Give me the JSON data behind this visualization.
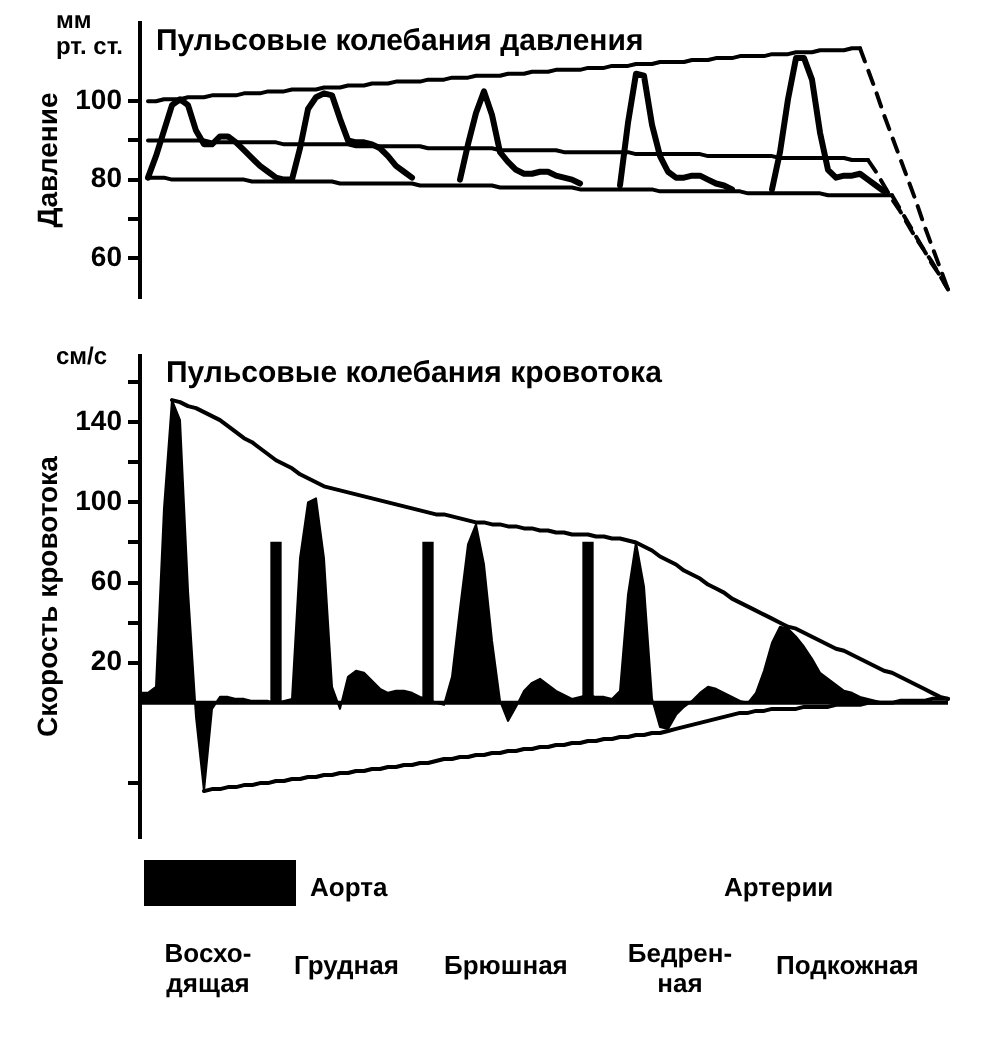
{
  "chart_data": [
    {
      "type": "line",
      "title": "Пульсовые колебания давления",
      "ylabel": "Давление",
      "annotations": [
        "мм\nрт. ст."
      ],
      "categories": [
        null,
        null,
        null,
        null,
        null,
        null,
        null,
        null,
        null,
        null,
        null,
        null,
        null,
        null,
        null,
        null,
        null,
        null,
        null,
        null,
        null,
        null,
        null,
        null,
        null,
        null,
        null,
        null,
        null,
        null,
        null,
        null,
        null,
        null,
        null,
        null,
        null,
        null,
        null,
        null,
        null,
        null,
        null,
        null,
        null,
        null,
        null,
        null,
        null,
        null,
        null,
        null,
        null,
        null,
        null,
        null,
        null,
        null,
        null,
        null,
        null,
        null,
        null,
        null,
        null,
        null,
        null,
        null,
        null,
        null,
        null,
        null,
        null,
        null,
        null,
        null,
        null,
        null,
        null,
        null,
        null,
        null,
        null,
        null,
        null,
        null,
        null,
        null,
        null,
        null,
        null,
        null,
        null,
        null,
        null,
        null,
        null,
        null,
        null,
        null,
        null,
        null
      ],
      "ylim": [
        50,
        120
      ],
      "yticks": [
        60,
        {
          "value": 70,
          "label": null
        },
        80,
        {
          "value": 90,
          "label": null
        },
        100
      ],
      "tick_labels": "y",
      "marker": "none",
      "line_style": "solid",
      "series": [
        {
          "color": "#000000",
          "values": [
            null,
            80.5,
            86,
            92.5,
            99,
            100.5,
            99,
            92.5,
            89,
            89,
            91,
            91,
            89.5,
            87.5,
            85.5,
            83.5,
            82,
            80.5,
            80,
            80,
            88,
            98,
            101,
            102,
            101.5,
            95.5,
            90,
            89.5,
            89.5,
            89,
            88,
            86,
            83.5,
            82,
            80.5,
            null,
            null,
            null,
            null,
            null,
            80,
            89,
            97,
            102.5,
            96.5,
            87,
            84.5,
            82.5,
            81.5,
            81.5,
            82,
            82,
            81,
            80.5,
            80,
            79,
            null,
            null,
            null,
            null,
            78.5,
            94.5,
            107,
            106.5,
            94,
            86,
            82,
            80.5,
            80.5,
            81,
            81,
            80,
            79,
            78.5,
            77.5,
            null,
            null,
            null,
            null,
            77.5,
            87,
            100.5,
            111,
            111,
            105.5,
            92,
            82.5,
            80.5,
            81,
            81,
            81.5,
            80,
            78.5,
            77,
            null,
            null,
            null,
            null,
            null,
            null,
            null,
            null
          ]
        },
        {
          "color": "#000000",
          "values": [
            null,
            100,
            100,
            100.5,
            100.5,
            100.5,
            101,
            101,
            101,
            101.5,
            101.5,
            101.5,
            101.5,
            102,
            102,
            102,
            102.5,
            102.5,
            102.5,
            103,
            103,
            103,
            103,
            103.5,
            103.5,
            103.5,
            104,
            104,
            104,
            104.5,
            104.5,
            104.5,
            105,
            105,
            105,
            105,
            105.5,
            105.5,
            105.5,
            106,
            106,
            106,
            106.5,
            106.5,
            106.5,
            106.5,
            107,
            107,
            107,
            107.5,
            107.5,
            107.5,
            108,
            108,
            108,
            108,
            108.5,
            108.5,
            108.5,
            109,
            109,
            109,
            109.5,
            109.5,
            109.5,
            110,
            110,
            110,
            110,
            110.5,
            110.5,
            110.5,
            111,
            111,
            111,
            111.5,
            111.5,
            111.5,
            111.5,
            112,
            112,
            112,
            112.5,
            112.5,
            112.5,
            113,
            113,
            113,
            113,
            113.5,
            113.5,
            null,
            null,
            null,
            null,
            null,
            null,
            null,
            null,
            null,
            null,
            null
          ]
        },
        {
          "color": "#000000",
          "line_style": "dashed",
          "values": [
            null,
            null,
            null,
            null,
            null,
            null,
            null,
            null,
            null,
            null,
            null,
            null,
            null,
            null,
            null,
            null,
            null,
            null,
            null,
            null,
            null,
            null,
            null,
            null,
            null,
            null,
            null,
            null,
            null,
            null,
            null,
            null,
            null,
            null,
            null,
            null,
            null,
            null,
            null,
            null,
            null,
            null,
            null,
            null,
            null,
            null,
            null,
            null,
            null,
            null,
            null,
            null,
            null,
            null,
            null,
            null,
            null,
            null,
            null,
            null,
            null,
            null,
            null,
            null,
            null,
            null,
            null,
            null,
            null,
            null,
            null,
            null,
            null,
            null,
            null,
            null,
            null,
            null,
            null,
            null,
            null,
            null,
            null,
            null,
            null,
            null,
            null,
            null,
            null,
            null,
            113.5,
            108,
            102.5,
            96.5,
            91,
            85.5,
            80,
            74.5,
            68.5,
            63,
            57.5,
            52
          ]
        },
        {
          "color": "#000000",
          "values": [
            null,
            90,
            90,
            90,
            90,
            90,
            90,
            90,
            90,
            89.5,
            89.5,
            89.5,
            89.5,
            89.5,
            89.5,
            89.5,
            89.5,
            89.5,
            89,
            89,
            89,
            89,
            89,
            89,
            89,
            89,
            89,
            88.5,
            88.5,
            88.5,
            88.5,
            88.5,
            88.5,
            88.5,
            88.5,
            88.5,
            88,
            88,
            88,
            88,
            88,
            88,
            88,
            88,
            88,
            87.5,
            87.5,
            87.5,
            87.5,
            87.5,
            87.5,
            87.5,
            87.5,
            87,
            87,
            87,
            87,
            87,
            87,
            87,
            87,
            87,
            86.5,
            86.5,
            86.5,
            86.5,
            86.5,
            86.5,
            86.5,
            86.5,
            86.5,
            86,
            86,
            86,
            86,
            86,
            86,
            86,
            86,
            86,
            85.5,
            85.5,
            85.5,
            85.5,
            85.5,
            85.5,
            85.5,
            85.5,
            85.5,
            85,
            85,
            85,
            null,
            null,
            null,
            null,
            null,
            null,
            null,
            null,
            null,
            null
          ]
        },
        {
          "color": "#000000",
          "line_style": "dashed",
          "values": [
            null,
            null,
            null,
            null,
            null,
            null,
            null,
            null,
            null,
            null,
            null,
            null,
            null,
            null,
            null,
            null,
            null,
            null,
            null,
            null,
            null,
            null,
            null,
            null,
            null,
            null,
            null,
            null,
            null,
            null,
            null,
            null,
            null,
            null,
            null,
            null,
            null,
            null,
            null,
            null,
            null,
            null,
            null,
            null,
            null,
            null,
            null,
            null,
            null,
            null,
            null,
            null,
            null,
            null,
            null,
            null,
            null,
            null,
            null,
            null,
            null,
            null,
            null,
            null,
            null,
            null,
            null,
            null,
            null,
            null,
            null,
            null,
            null,
            null,
            null,
            null,
            null,
            null,
            null,
            null,
            null,
            null,
            null,
            null,
            null,
            null,
            null,
            null,
            null,
            null,
            null,
            85,
            82,
            78.5,
            75,
            72,
            68.5,
            65,
            62,
            58.5,
            55.5,
            52
          ]
        },
        {
          "color": "#000000",
          "values": [
            null,
            80.5,
            80.5,
            80.5,
            80,
            80,
            80,
            80,
            80,
            80,
            80,
            80,
            80,
            80,
            79.5,
            79.5,
            79.5,
            79.5,
            79.5,
            79.5,
            79.5,
            79.5,
            79.5,
            79.5,
            79.5,
            79,
            79,
            79,
            79,
            79,
            79,
            79,
            79,
            79,
            79,
            78.5,
            78.5,
            78.5,
            78.5,
            78.5,
            78.5,
            78.5,
            78.5,
            78.5,
            78.5,
            78,
            78,
            78,
            78,
            78,
            78,
            78,
            78,
            78,
            78,
            77.5,
            77.5,
            77.5,
            77.5,
            77.5,
            77.5,
            77.5,
            77.5,
            77.5,
            77.5,
            77,
            77,
            77,
            77,
            77,
            77,
            77,
            77,
            77,
            77,
            77,
            76.5,
            76.5,
            76.5,
            76.5,
            76.5,
            76.5,
            76.5,
            76.5,
            76.5,
            76.5,
            76,
            76,
            76,
            76,
            76,
            76,
            76,
            76,
            76,
            null,
            null,
            null,
            null,
            null,
            null,
            null
          ]
        },
        {
          "color": "#000000",
          "line_style": "dashed",
          "values": [
            null,
            null,
            null,
            null,
            null,
            null,
            null,
            null,
            null,
            null,
            null,
            null,
            null,
            null,
            null,
            null,
            null,
            null,
            null,
            null,
            null,
            null,
            null,
            null,
            null,
            null,
            null,
            null,
            null,
            null,
            null,
            null,
            null,
            null,
            null,
            null,
            null,
            null,
            null,
            null,
            null,
            null,
            null,
            null,
            null,
            null,
            null,
            null,
            null,
            null,
            null,
            null,
            null,
            null,
            null,
            null,
            null,
            null,
            null,
            null,
            null,
            null,
            null,
            null,
            null,
            null,
            null,
            null,
            null,
            null,
            null,
            null,
            null,
            null,
            null,
            null,
            null,
            null,
            null,
            null,
            null,
            null,
            null,
            null,
            null,
            null,
            null,
            null,
            null,
            null,
            null,
            null,
            null,
            null,
            76,
            72.5,
            69,
            65.5,
            62,
            59,
            55.5,
            52
          ]
        }
      ]
    },
    {
      "type": "area",
      "title": "Пульсовые колебания кровотока",
      "ylabel": "Скорость кровотока",
      "annotations": [
        "см/с",
        "Аорта",
        "Артерии",
        "Восхо-\nдящая",
        "Грудная",
        "Брюшная",
        "Бедрен-\nная",
        "Подкожная"
      ],
      "categories": [
        null,
        null,
        null,
        null,
        null,
        null,
        null,
        null,
        null,
        null,
        null,
        null,
        null,
        null,
        null,
        null,
        null,
        null,
        null,
        null,
        null,
        null,
        null,
        null,
        null,
        null,
        null,
        null,
        null,
        null,
        null,
        null,
        null,
        null,
        null,
        null,
        null,
        null,
        null,
        null,
        null,
        null,
        null,
        null,
        null,
        null,
        null,
        null,
        null,
        null,
        null,
        null,
        null,
        null,
        null,
        null,
        null,
        null,
        null,
        null,
        null,
        null,
        null,
        null,
        null,
        null,
        null,
        null,
        null,
        null,
        null,
        null,
        null,
        null,
        null,
        null,
        null,
        null,
        null,
        null,
        null,
        null,
        null,
        null,
        null,
        null,
        null,
        null,
        null,
        null,
        null,
        null,
        null,
        null,
        null,
        null,
        null,
        null,
        null,
        null,
        null,
        null
      ],
      "ylim": [
        -67,
        173
      ],
      "yticks": [
        {
          "value": -40,
          "label": null
        },
        20,
        {
          "value": 40,
          "label": null
        },
        60,
        {
          "value": 80,
          "label": null
        },
        100,
        {
          "value": 120,
          "label": null
        },
        140,
        {
          "value": 160,
          "label": null
        }
      ],
      "tick_labels": "y",
      "marker": "none",
      "line_style": "solid",
      "ref_lines": [
        {
          "axis": "y",
          "value": 0,
          "color": "#000000"
        }
      ],
      "series": [
        {
          "type": "area",
          "color": "#000000",
          "values": [
            5,
            5,
            8,
            97,
            151,
            141,
            56,
            -7,
            -44,
            -3,
            3,
            3,
            2,
            2,
            1,
            1,
            1,
            0,
            1,
            2,
            72,
            100,
            102,
            72,
            8,
            -3,
            13,
            16,
            15,
            11,
            7,
            5,
            6,
            6,
            5,
            3,
            2,
            0,
            -1,
            13,
            47,
            79,
            89,
            69,
            31,
            1,
            -9,
            -2,
            6,
            10,
            12,
            9,
            6,
            4,
            2,
            3,
            4,
            3,
            3,
            2,
            6,
            54,
            80,
            58,
            2,
            -12,
            -13,
            -6,
            -2,
            1,
            5,
            8,
            7,
            5,
            3,
            1,
            0,
            5,
            16,
            30,
            38,
            37,
            33,
            28,
            22,
            15,
            12,
            9,
            6,
            5,
            3,
            2,
            1,
            0,
            null,
            null,
            null,
            null,
            null,
            null,
            null,
            null
          ]
        },
        {
          "type": "line",
          "color": "#000000",
          "values": [
            null,
            null,
            null,
            null,
            151,
            150,
            148,
            147,
            145,
            143,
            141,
            138,
            135,
            132,
            130,
            127,
            124,
            121,
            119,
            117,
            114,
            112,
            110,
            108,
            107,
            106,
            105,
            104,
            103,
            102,
            101,
            100,
            99,
            98,
            97,
            96,
            95,
            94,
            94,
            93,
            92,
            91,
            90,
            90,
            89,
            89,
            88,
            88,
            87,
            87,
            86,
            86,
            85,
            85,
            84,
            84,
            84,
            83,
            83,
            82,
            82,
            81,
            80,
            78,
            76,
            73,
            71,
            69,
            66,
            64,
            62,
            59,
            57,
            55,
            52,
            50,
            48,
            46,
            44,
            42,
            40,
            38,
            37,
            35,
            33,
            31,
            29,
            27,
            26,
            24,
            22,
            20,
            18,
            16,
            15,
            13,
            11,
            9,
            7,
            5,
            3,
            2
          ]
        },
        {
          "type": "line",
          "color": "#000000",
          "values": [
            null,
            null,
            null,
            null,
            null,
            null,
            null,
            null,
            -44,
            -43,
            -43,
            -42,
            -42,
            -41,
            -41,
            -40,
            -40,
            -39,
            -39,
            -38,
            -38,
            -37,
            -37,
            -36,
            -36,
            -35,
            -35,
            -34,
            -34,
            -33,
            -33,
            -32,
            -32,
            -31,
            -31,
            -30,
            -30,
            -29,
            -28,
            -28,
            -27,
            -27,
            -26,
            -26,
            -25,
            -25,
            -24,
            -24,
            -23,
            -23,
            -22,
            -22,
            -21,
            -21,
            -20,
            -20,
            -19,
            -19,
            -18,
            -18,
            -17,
            -17,
            -16,
            -16,
            -15,
            -15,
            -14,
            -13,
            -12,
            -11,
            -10,
            -9,
            -8,
            -7,
            -6,
            -5,
            -5,
            -4,
            -4,
            -3,
            -3,
            -3,
            -3,
            -2,
            -2,
            -2,
            -2,
            -1,
            -1,
            -1,
            -1,
            0,
            0,
            0,
            0,
            1,
            1,
            1,
            1,
            2,
            2,
            2
          ]
        },
        {
          "type": "bar",
          "color": "#000000",
          "values": [
            null,
            null,
            null,
            null,
            null,
            null,
            null,
            null,
            null,
            null,
            null,
            null,
            null,
            null,
            null,
            null,
            null,
            80,
            null,
            null,
            null,
            null,
            null,
            null,
            null,
            null,
            null,
            null,
            null,
            null,
            null,
            null,
            null,
            null,
            null,
            null,
            80,
            null,
            null,
            null,
            null,
            null,
            null,
            null,
            null,
            null,
            null,
            null,
            null,
            null,
            null,
            null,
            null,
            null,
            null,
            null,
            80,
            null,
            null,
            null,
            null,
            null,
            null,
            null,
            null,
            null,
            null,
            null,
            null,
            null,
            null,
            null,
            null,
            null,
            null,
            null,
            null,
            null,
            null,
            null,
            null,
            null,
            null,
            null,
            null,
            null,
            null,
            null,
            null,
            null,
            null,
            null,
            null,
            null,
            null,
            null,
            null,
            null,
            null,
            null,
            null,
            null
          ]
        }
      ]
    }
  ]
}
